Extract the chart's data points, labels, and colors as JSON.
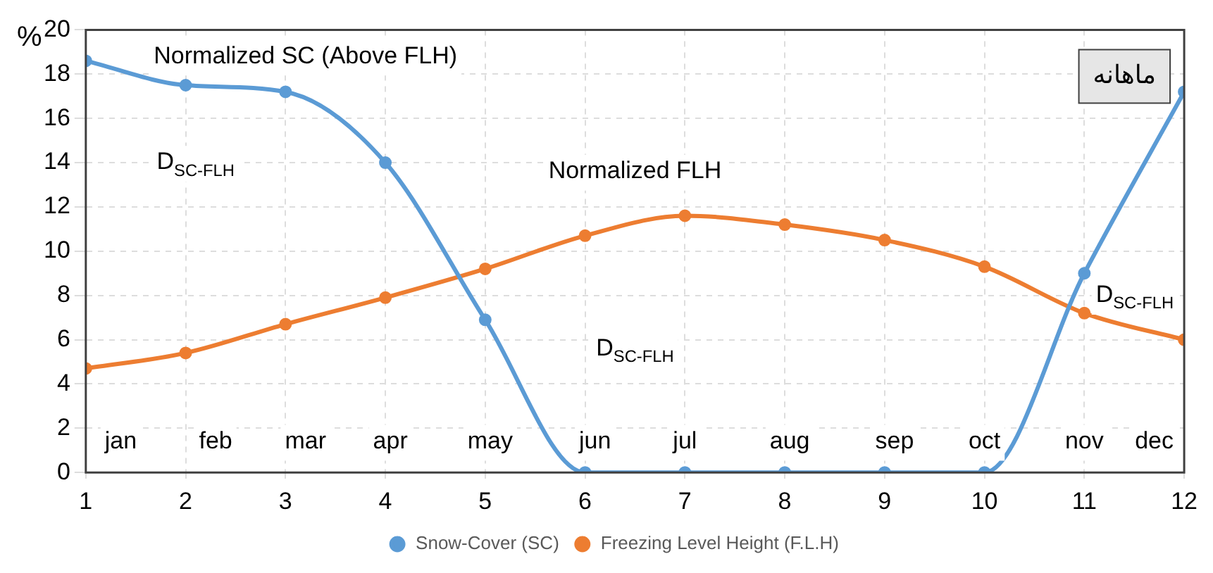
{
  "chart_data": {
    "type": "line",
    "ylabel": "%",
    "x": [
      1,
      2,
      3,
      4,
      5,
      6,
      7,
      8,
      9,
      10,
      11,
      12
    ],
    "series": [
      {
        "name": "Snow-Cover (SC)",
        "color": "#5b9bd5",
        "values": [
          18.6,
          17.5,
          17.2,
          14.0,
          6.9,
          0,
          0,
          0,
          0,
          0,
          9.0,
          17.2
        ]
      },
      {
        "name": "Freezing Level Height (F.L.H)",
        "color": "#ed7d31",
        "values": [
          4.7,
          5.4,
          6.7,
          7.9,
          9.2,
          10.7,
          11.6,
          11.2,
          10.5,
          9.3,
          7.2,
          6.0
        ]
      }
    ],
    "xlim": [
      1,
      12
    ],
    "xticks": [
      1,
      2,
      3,
      4,
      5,
      6,
      7,
      8,
      9,
      10,
      11,
      12
    ],
    "ylim": [
      0,
      20
    ],
    "yticks": [
      0,
      2,
      4,
      6,
      8,
      10,
      12,
      14,
      16,
      18,
      20
    ],
    "grid": true,
    "legend": "bottom",
    "marker": "circle",
    "line_style": "solid",
    "annotations": [
      "ماهانه",
      "Normalized SC (Above FLH)",
      "Normalized FLH",
      "D$_{SC-FLH}$",
      "D$_{SC-FLH}$",
      "D$_{SC-FLH}$",
      {
        "text": "jan",
        "x": 1.35,
        "y": 1.4
      },
      {
        "text": "feb",
        "x": 2.3,
        "y": 1.4
      },
      {
        "text": "mar",
        "x": 3.2,
        "y": 1.4
      },
      {
        "text": "apr",
        "x": 4.05,
        "y": 1.4
      },
      {
        "text": "may",
        "x": 5.05,
        "y": 1.4
      },
      {
        "text": "jun",
        "x": 6.1,
        "y": 1.4
      },
      {
        "text": "jul",
        "x": 7.0,
        "y": 1.4
      },
      {
        "text": "aug",
        "x": 8.05,
        "y": 1.4
      },
      {
        "text": "sep",
        "x": 9.1,
        "y": 1.4
      },
      {
        "text": "oct",
        "x": 10.0,
        "y": 1.4
      },
      {
        "text": "nov",
        "x": 11.0,
        "y": 1.4
      },
      {
        "text": "dec",
        "x": 11.7,
        "y": 1.4
      }
    ]
  }
}
